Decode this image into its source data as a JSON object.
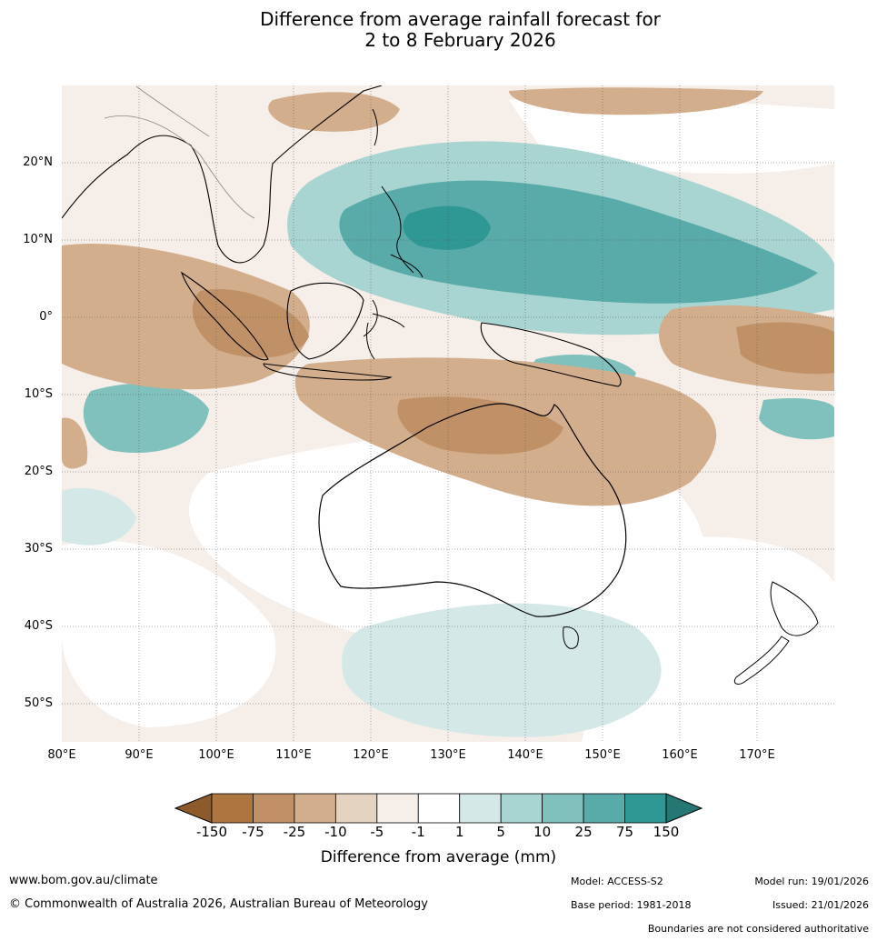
{
  "title": {
    "line1": "Difference from average rainfall forecast for",
    "line2": "2 to 8 February 2026"
  },
  "axes": {
    "latitudes": [
      "20°N",
      "10°N",
      "0°",
      "10°S",
      "20°S",
      "30°S",
      "40°S",
      "50°S"
    ],
    "longitudes": [
      "80°E",
      "90°E",
      "100°E",
      "110°E",
      "120°E",
      "130°E",
      "140°E",
      "150°E",
      "160°E",
      "170°E"
    ]
  },
  "colorbar": {
    "title": "Difference from average (mm)",
    "ticks": [
      "-150",
      "-75",
      "-25",
      "-10",
      "-5",
      "-1",
      "1",
      "5",
      "10",
      "25",
      "75",
      "150"
    ],
    "colors": [
      "#8c5a2b",
      "#ad7641",
      "#c09167",
      "#d3ae8d",
      "#e5d3c2",
      "#f5eee9",
      "#ffffff",
      "#d4e9e7",
      "#a8d4d1",
      "#80c0bd",
      "#58aba8",
      "#2f9894",
      "#257774"
    ]
  },
  "footer": {
    "website": "www.bom.gov.au/climate",
    "copyright": "© Commonwealth of Australia 2026, Australian Bureau of Meteorology",
    "model": "Model: ACCESS-S2",
    "model_run": "Model run: 19/01/2026",
    "base_period": "Base period: 1981-2018",
    "issued": "Issued: 21/01/2026",
    "disclaimer": "Boundaries are not considered authoritative"
  }
}
